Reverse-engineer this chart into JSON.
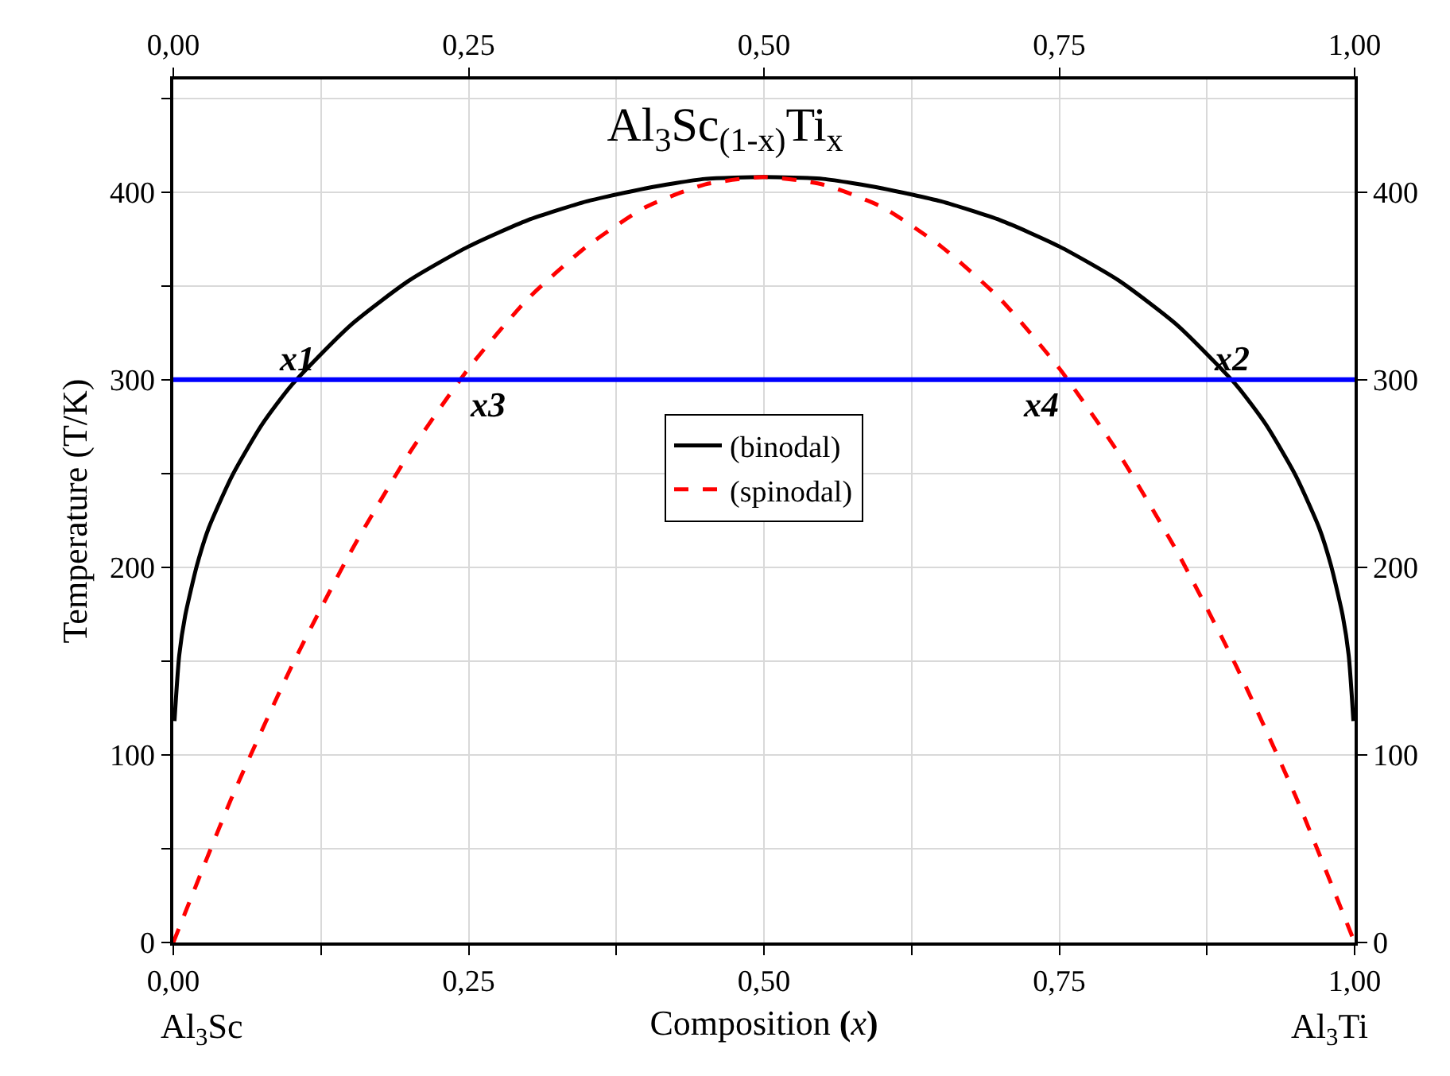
{
  "chart_data": {
    "type": "line",
    "title": "Al$_{3}$Sc$_{(1-x)}$Ti$_{x}$",
    "xlabel": "Composition (x)",
    "ylabel": "Temperature (T/K)",
    "series": [
      {
        "name": "(binodal)",
        "color": "#000000",
        "line_style": "solid",
        "x": [
          0.001,
          0.005,
          0.01,
          0.02,
          0.03,
          0.05,
          0.075,
          0.1,
          0.15,
          0.2,
          0.25,
          0.3,
          0.35,
          0.4,
          0.45,
          0.5,
          0.55,
          0.6,
          0.65,
          0.7,
          0.75,
          0.8,
          0.85,
          0.9,
          0.925,
          0.95,
          0.97,
          0.98,
          0.99,
          0.995,
          0.999
        ],
        "values": [
          118,
          153,
          174,
          201,
          221,
          249,
          276,
          297,
          329,
          353,
          371,
          385,
          395,
          402,
          407,
          408,
          407,
          402,
          395,
          385,
          371,
          353,
          329,
          297,
          276,
          249,
          221,
          201,
          174,
          153,
          118
        ]
      },
      {
        "name": "(spinodal)",
        "color": "#ff0000",
        "line_style": "dashed",
        "x": [
          0,
          0.05,
          0.1,
          0.15,
          0.2,
          0.25,
          0.3,
          0.35,
          0.4,
          0.45,
          0.5,
          0.55,
          0.6,
          0.65,
          0.7,
          0.75,
          0.8,
          0.85,
          0.9,
          0.95,
          1
        ],
        "values": [
          0,
          78,
          147,
          208,
          261,
          306,
          343,
          371,
          392,
          404,
          408,
          404,
          392,
          371,
          343,
          306,
          261,
          208,
          147,
          78,
          0
        ]
      }
    ],
    "ref_lines": [
      {
        "axis": "y",
        "value": 300,
        "color": "#0000ff"
      }
    ],
    "annotations": [
      {
        "text": "x1",
        "x": 0.1,
        "y": 300
      },
      {
        "text": "x2",
        "x": 0.9,
        "y": 300
      },
      {
        "text": "x3",
        "x": 0.25,
        "y": 300
      },
      {
        "text": "x4",
        "x": 0.75,
        "y": 300
      },
      "Al$_{3}$Sc",
      "Al$_{3}$Ti"
    ],
    "xlim": [
      0,
      1
    ],
    "xticks": [
      {
        "value": 0,
        "label": "0,00"
      },
      {
        "value": 0.125,
        "label": null
      },
      {
        "value": 0.25,
        "label": "0,25"
      },
      {
        "value": 0.375,
        "label": null
      },
      {
        "value": 0.5,
        "label": "0,50"
      },
      {
        "value": 0.625,
        "label": null
      },
      {
        "value": 0.75,
        "label": "0,75"
      },
      {
        "value": 0.875,
        "label": null
      },
      {
        "value": 1,
        "label": "1,00"
      }
    ],
    "x2lim": [
      0,
      1
    ],
    "x2ticks": [
      {
        "value": 0,
        "label": "0,00"
      },
      {
        "value": 0.25,
        "label": "0,25"
      },
      {
        "value": 0.5,
        "label": "0,50"
      },
      {
        "value": 0.75,
        "label": "0,75"
      },
      {
        "value": 1,
        "label": "1,00"
      }
    ],
    "ylim": [
      0,
      460
    ],
    "yticks": [
      0,
      {
        "value": 50,
        "label": null
      },
      100,
      {
        "value": 150,
        "label": null
      },
      200,
      {
        "value": 250,
        "label": null
      },
      300,
      {
        "value": 350,
        "label": null
      },
      400,
      {
        "value": 450,
        "label": null
      }
    ],
    "y2lim": [
      0,
      460
    ],
    "y2ticks": [
      0,
      100,
      200,
      300,
      400
    ],
    "grid": true,
    "legend": "center",
    "marker": "none"
  }
}
